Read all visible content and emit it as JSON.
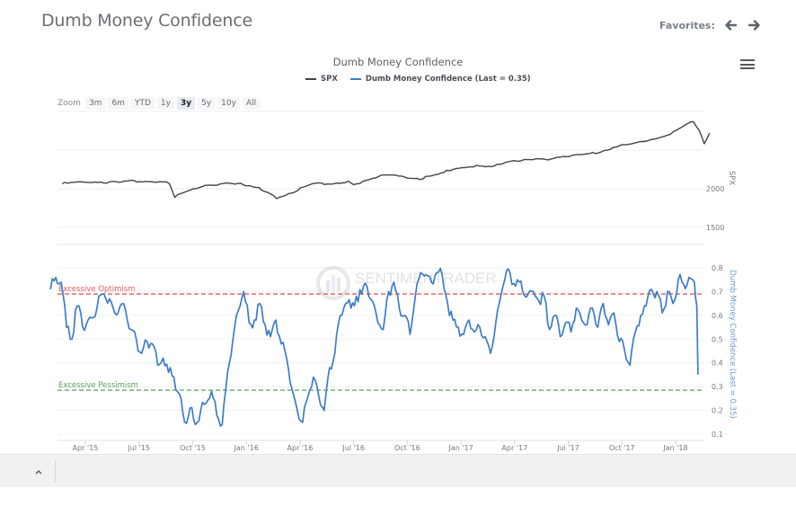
{
  "page": {
    "title": "Dumb Money Confidence",
    "favorites_label": "Favorites:",
    "favorites_prev_icon": "arrow-left-icon",
    "favorites_next_icon": "arrow-right-icon",
    "menu_icon": "hamburger-menu-icon",
    "footer_toggle_icon": "chevron-up-icon",
    "watermark": "SENTIMENTRADER"
  },
  "zoom": {
    "label": "Zoom",
    "buttons": [
      "3m",
      "6m",
      "YTD",
      "1y",
      "3y",
      "5y",
      "10y",
      "All"
    ],
    "active": "3y"
  },
  "chart_data": {
    "type": "line",
    "title": "Dumb Money Confidence",
    "legend": [
      {
        "name": "SPX",
        "color": "#444444"
      },
      {
        "name": "Dumb Money Confidence (Last = 0.35)",
        "color": "#3d7cc9"
      }
    ],
    "x_tick_labels": [
      "Apr '15",
      "Jul '15",
      "Oct '15",
      "Jan '16",
      "Apr '16",
      "Jul '16",
      "Oct '16",
      "Jan '17",
      "Apr '17",
      "Jul '17",
      "Oct '17",
      "Jan '18"
    ],
    "x_range": [
      "2015-02",
      "2018-02"
    ],
    "panels": [
      {
        "name": "SPX",
        "ylabel": "SPX",
        "yticks": [
          1500,
          2000
        ],
        "ylim": [
          1300,
          2950
        ],
        "series": {
          "name": "SPX",
          "color": "#444444",
          "x_months": [
            0,
            1,
            2,
            3,
            4,
            5,
            5.5,
            6,
            6.3,
            7,
            8,
            9,
            10,
            11,
            11.5,
            12,
            13,
            14,
            15,
            16,
            16.3,
            17,
            18,
            19,
            20,
            21,
            22,
            23,
            24,
            25,
            26,
            27,
            28,
            29,
            30,
            31,
            32,
            33,
            34,
            35,
            35.3,
            35.6,
            35.9,
            36.2
          ],
          "values": [
            2065,
            2085,
            2090,
            2080,
            2100,
            2095,
            2090,
            2070,
            1900,
            1960,
            2050,
            2060,
            2060,
            2020,
            1940,
            1880,
            1970,
            2060,
            2070,
            2090,
            2040,
            2120,
            2170,
            2160,
            2130,
            2180,
            2270,
            2290,
            2280,
            2360,
            2370,
            2380,
            2420,
            2440,
            2470,
            2550,
            2580,
            2650,
            2700,
            2840,
            2870,
            2750,
            2590,
            2720
          ]
        }
      },
      {
        "name": "Dumb Money Confidence",
        "ylabel": "Dumb Money Confidence (Last = 0.35)",
        "yticks": [
          0.1,
          0.2,
          0.3,
          0.4,
          0.5,
          0.6,
          0.7,
          0.8
        ],
        "ylim": [
          0.1,
          0.8
        ],
        "reference_lines": [
          {
            "label": "Excessive Optimism",
            "value": 0.69,
            "color": "#e05a5a"
          },
          {
            "label": "Excessive Pessimism",
            "value": 0.285,
            "color": "#5aa05a"
          }
        ],
        "series": {
          "name": "Dumb Money Confidence",
          "color": "#3d7cc9",
          "last": 0.35,
          "x_months": [
            0,
            0.3,
            0.6,
            0.9,
            1.2,
            1.5,
            1.8,
            2.1,
            2.4,
            2.7,
            3.0,
            3.3,
            3.6,
            3.9,
            4.2,
            4.5,
            4.8,
            5.1,
            5.4,
            5.7,
            6.0,
            6.3,
            6.6,
            6.9,
            7.2,
            7.5,
            7.8,
            8.1,
            8.4,
            8.7,
            9.0,
            9.3,
            9.6,
            9.9,
            10.2,
            10.5,
            10.8,
            11.1,
            11.4,
            11.7,
            12.0,
            12.3,
            12.6,
            12.9,
            13.2,
            13.5,
            13.8,
            14.1,
            14.4,
            14.7,
            15.0,
            15.3,
            15.6,
            15.9,
            16.2,
            16.5,
            16.8,
            17.1,
            17.4,
            17.7,
            18.0,
            18.3,
            18.6,
            18.9,
            19.2,
            19.5,
            19.8,
            20.1,
            20.4,
            20.7,
            21.0,
            21.3,
            21.6,
            21.9,
            22.2,
            22.5,
            22.8,
            23.1,
            23.4,
            23.7,
            24.0,
            24.3,
            24.6,
            24.9,
            25.2,
            25.5,
            25.8,
            26.1,
            26.4,
            26.7,
            27.0,
            27.3,
            27.6,
            27.9,
            28.2,
            28.5,
            28.8,
            29.1,
            29.4,
            29.7,
            30.0,
            30.3,
            30.6,
            30.9,
            31.2,
            31.5,
            31.8,
            32.1,
            32.4,
            32.7,
            33.0,
            33.3,
            33.6,
            33.9,
            34.2,
            34.5,
            34.8,
            35.1,
            35.4,
            35.7,
            36.0,
            36.2
          ],
          "values": [
            0.71,
            0.76,
            0.74,
            0.55,
            0.5,
            0.64,
            0.55,
            0.58,
            0.59,
            0.68,
            0.69,
            0.67,
            0.61,
            0.64,
            0.62,
            0.54,
            0.5,
            0.44,
            0.49,
            0.48,
            0.39,
            0.42,
            0.36,
            0.34,
            0.27,
            0.15,
            0.21,
            0.14,
            0.2,
            0.23,
            0.28,
            0.18,
            0.14,
            0.36,
            0.5,
            0.62,
            0.7,
            0.57,
            0.58,
            0.65,
            0.56,
            0.51,
            0.58,
            0.48,
            0.42,
            0.29,
            0.2,
            0.15,
            0.26,
            0.34,
            0.26,
            0.2,
            0.38,
            0.44,
            0.6,
            0.65,
            0.63,
            0.68,
            0.69,
            0.72,
            0.66,
            0.57,
            0.54,
            0.7,
            0.74,
            0.63,
            0.6,
            0.52,
            0.68,
            0.78,
            0.77,
            0.74,
            0.78,
            0.77,
            0.65,
            0.58,
            0.55,
            0.52,
            0.58,
            0.53,
            0.55,
            0.51,
            0.44,
            0.57,
            0.69,
            0.79,
            0.73,
            0.75,
            0.7,
            0.69,
            0.7,
            0.66,
            0.68,
            0.54,
            0.6,
            0.51,
            0.57,
            0.53,
            0.63,
            0.58,
            0.56,
            0.63,
            0.55,
            0.65,
            0.56,
            0.61,
            0.49,
            0.45,
            0.39,
            0.53,
            0.6,
            0.64,
            0.71,
            0.7,
            0.61,
            0.7,
            0.65,
            0.75,
            0.73,
            0.76,
            0.74,
            0.62,
            0.42,
            0.35
          ]
        }
      }
    ]
  }
}
